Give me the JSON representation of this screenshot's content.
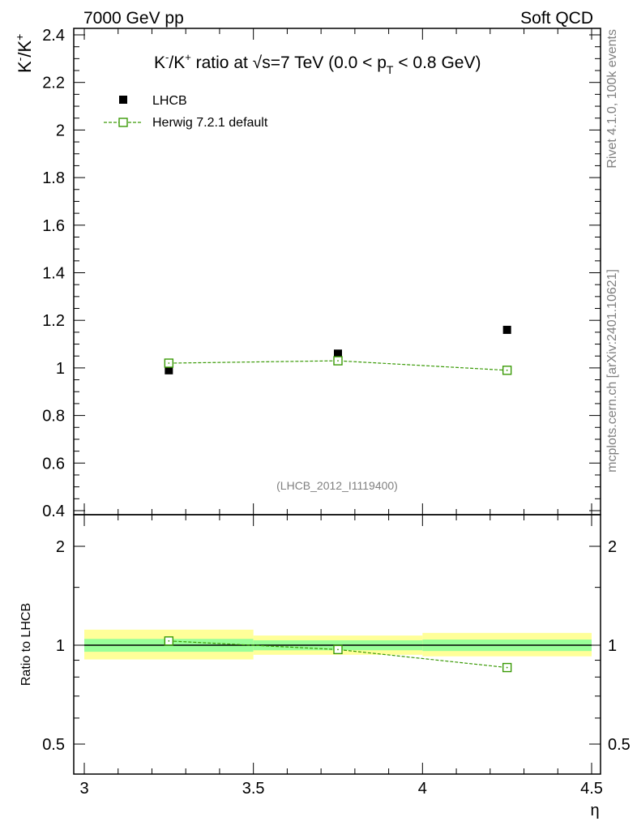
{
  "header": {
    "left": "7000 GeV pp",
    "right": "Soft QCD"
  },
  "side": {
    "rivet": "Rivet 4.1.0,  100k events",
    "mcplots": "mcplots.cern.ch [arXiv:2401.10621]"
  },
  "chart_data": [
    {
      "type": "scatter",
      "title": "K⁻/K⁺ ratio at √s=7 TeV (0.0 < p_T < 0.8 GeV)",
      "title_parts": {
        "a": "K",
        "b": "-",
        "c": "/K",
        "d": "+",
        "e": " ratio at ",
        "f": "√",
        "g": "s=7 TeV (0.0 < p",
        "h": "T",
        "i": " < 0.8 GeV)"
      },
      "ylabel_parts": {
        "a": "K",
        "b": "-",
        "c": "/K",
        "d": "+"
      },
      "xlim": [
        3,
        4.5
      ],
      "ylim": [
        0.4,
        2.45
      ],
      "yticks": [
        0.4,
        0.6,
        0.8,
        1,
        1.2,
        1.4,
        1.6,
        1.8,
        2,
        2.2,
        2.4
      ],
      "ytick_labels": [
        "0.4",
        "0.6",
        "0.8",
        "1",
        "1.2",
        "1.4",
        "1.6",
        "1.8",
        "2",
        "2.2",
        "2.4"
      ],
      "watermark": "(LHCB_2012_I1119400)",
      "legend_position": "top-left",
      "series": [
        {
          "name": "LHCB",
          "marker": "filled-square",
          "color": "#000000",
          "x": [
            3.25,
            3.75,
            4.25
          ],
          "values": [
            0.99,
            1.06,
            1.16
          ]
        },
        {
          "name": "Herwig 7.2.1 default",
          "marker": "open-square",
          "line": "dashed",
          "color": "#3a9a06",
          "x": [
            3.25,
            3.75,
            4.25
          ],
          "values": [
            1.02,
            1.03,
            0.99
          ]
        }
      ]
    },
    {
      "type": "line",
      "ylabel": "Ratio to LHCB",
      "xlabel": "η",
      "xlim": [
        3,
        4.5
      ],
      "ylim": [
        0.4,
        2.45
      ],
      "yscale": "log",
      "yticks": [
        0.5,
        1,
        2
      ],
      "ytick_labels": [
        "0.5",
        "1",
        "2"
      ],
      "xticks": [
        3,
        3.5,
        4,
        4.5
      ],
      "xtick_labels": [
        "3",
        "3.5",
        "4",
        "4.5"
      ],
      "bands": [
        {
          "x0": 3.0,
          "x1": 3.5,
          "yellow": [
            0.905,
            1.115
          ],
          "green": [
            0.955,
            1.045
          ]
        },
        {
          "x0": 3.5,
          "x1": 4.0,
          "yellow": [
            0.935,
            1.07
          ],
          "green": [
            0.965,
            1.035
          ]
        },
        {
          "x0": 4.0,
          "x1": 4.5,
          "yellow": [
            0.925,
            1.09
          ],
          "green": [
            0.96,
            1.04
          ]
        }
      ],
      "series": [
        {
          "name": "Herwig 7.2.1 default / LHCB",
          "color": "#3a9a06",
          "x": [
            3.25,
            3.75,
            4.25
          ],
          "values": [
            1.03,
            0.97,
            0.855
          ]
        }
      ]
    }
  ]
}
